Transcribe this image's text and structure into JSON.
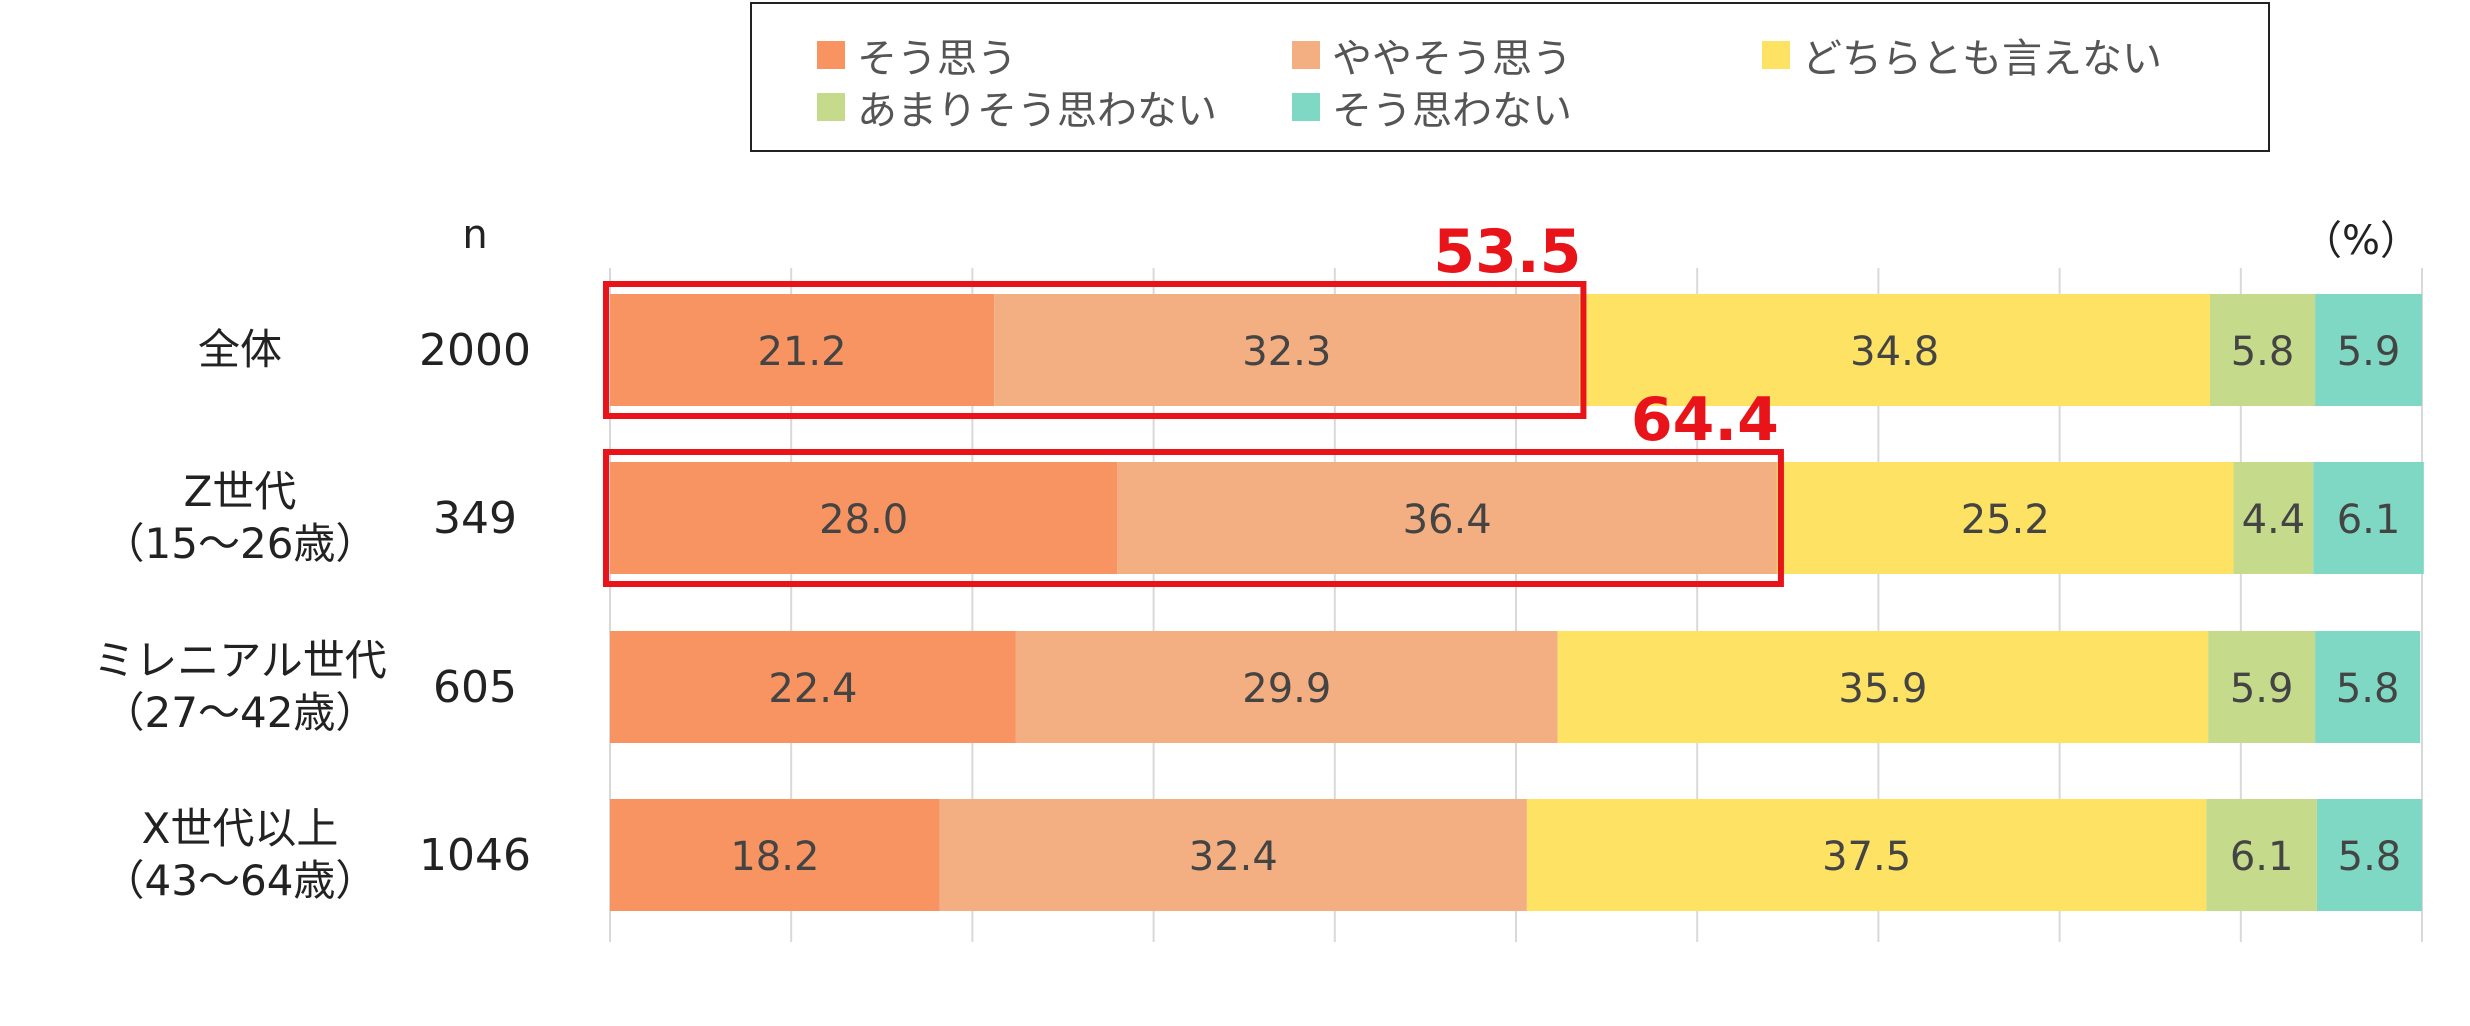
{
  "chart_data": {
    "type": "bar",
    "orientation": "horizontal",
    "stacked": true,
    "percent_stacked": true,
    "unit_label": "（%）",
    "n_header": "n",
    "xlim": [
      0,
      100
    ],
    "grid": "vertical",
    "legend_position": "top",
    "categories": [
      {
        "label_lines": [
          "全体"
        ],
        "n": "2000"
      },
      {
        "label_lines": [
          "Z世代",
          "（15〜26歳）"
        ],
        "n": "349"
      },
      {
        "label_lines": [
          "ミレニアル世代",
          "（27〜42歳）"
        ],
        "n": "605"
      },
      {
        "label_lines": [
          "X世代以上",
          "（43〜64歳）"
        ],
        "n": "1046"
      }
    ],
    "series": [
      {
        "name": "そう思う",
        "color": "#F79462",
        "values": [
          21.2,
          28.0,
          22.4,
          18.2
        ]
      },
      {
        "name": "ややそう思う",
        "color": "#F3AF82",
        "values": [
          32.3,
          36.4,
          29.9,
          32.4
        ]
      },
      {
        "name": "どちらとも言えない",
        "color": "#FDE264",
        "values": [
          34.8,
          25.2,
          35.9,
          37.5
        ]
      },
      {
        "name": "あまりそう思わない",
        "color": "#C6DA8C",
        "values": [
          5.8,
          4.4,
          5.9,
          6.1
        ]
      },
      {
        "name": "そう思わない",
        "color": "#7FD8C3",
        "values": [
          5.9,
          6.1,
          5.8,
          5.8
        ]
      }
    ],
    "annotations": [
      {
        "category_index": 0,
        "series_span": [
          0,
          1
        ],
        "label": "53.5",
        "color": "#E8141A"
      },
      {
        "category_index": 1,
        "series_span": [
          0,
          1
        ],
        "label": "64.4",
        "color": "#E8141A"
      }
    ]
  }
}
